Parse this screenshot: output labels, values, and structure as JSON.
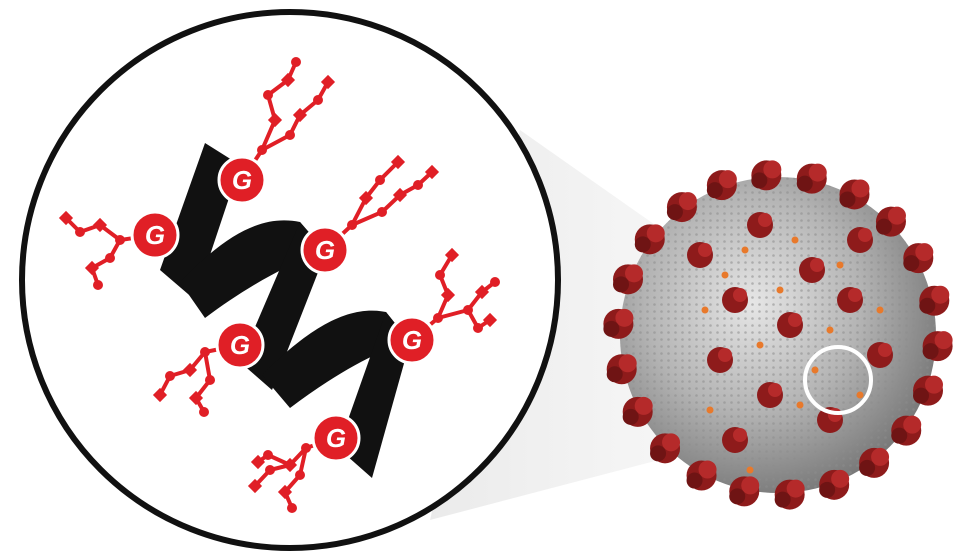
{
  "figure": {
    "glycan_label": "G",
    "colors": {
      "glycan": "#e01f26",
      "helix": "#111111",
      "outline": "#111111",
      "virus_surface": "#a8a8a8",
      "spike_protein": "#8e1b1b",
      "spike_highlight": "#b52a2a",
      "surface_dots": "#e8792b",
      "marker_ring": "#ffffff"
    },
    "icons": {
      "magnifier": "magnified-circle-icon",
      "virus": "coronavirus-particle-icon",
      "glycan": "glycan-chain-icon"
    }
  }
}
